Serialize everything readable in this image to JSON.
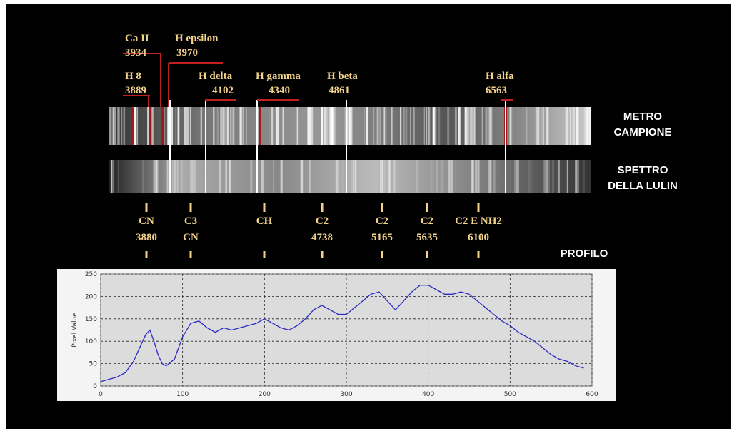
{
  "spectrum_labels": [
    {
      "lines": [
        "Ca II",
        "3934"
      ]
    },
    {
      "lines": [
        "H epsilon",
        "3970"
      ]
    },
    {
      "lines": [
        "H 8",
        "3889"
      ]
    },
    {
      "lines": [
        "H delta",
        "4102"
      ]
    },
    {
      "lines": [
        "H gamma",
        "4340"
      ]
    },
    {
      "lines": [
        "H beta",
        "4861"
      ]
    },
    {
      "lines": [
        "H alfa",
        "6563"
      ]
    }
  ],
  "strip_labels": [
    {
      "lines": [
        "METRO",
        "CAMPIONE"
      ]
    },
    {
      "lines": [
        "SPETTRO",
        "DELLA LULIN"
      ]
    }
  ],
  "band_labels": [
    {
      "lines": [
        "CN",
        "3880"
      ]
    },
    {
      "lines": [
        "C3",
        "CN"
      ]
    },
    {
      "lines": [
        "CH"
      ]
    },
    {
      "lines": [
        "C2",
        "4738"
      ]
    },
    {
      "lines": [
        "C2",
        "5165"
      ]
    },
    {
      "lines": [
        "C2",
        "5635"
      ]
    },
    {
      "lines": [
        "C2 E NH2",
        "6100"
      ]
    }
  ],
  "profile_label": "PROFILO",
  "chart_data": {
    "type": "line",
    "y_label": "Pixel Value",
    "x": [
      0,
      10,
      20,
      30,
      40,
      50,
      55,
      60,
      65,
      70,
      75,
      80,
      90,
      100,
      110,
      120,
      130,
      140,
      150,
      160,
      170,
      180,
      190,
      200,
      210,
      220,
      230,
      240,
      250,
      260,
      270,
      280,
      290,
      300,
      310,
      320,
      330,
      340,
      350,
      360,
      370,
      380,
      390,
      400,
      410,
      420,
      430,
      440,
      450,
      460,
      470,
      480,
      490,
      500,
      510,
      520,
      530,
      540,
      550,
      560,
      570,
      580,
      590
    ],
    "series": [
      {
        "name": "Pixel Value",
        "color": "#2b2bc4",
        "values": [
          10,
          15,
          20,
          30,
          55,
          95,
          115,
          125,
          100,
          70,
          50,
          45,
          60,
          110,
          140,
          145,
          130,
          120,
          130,
          125,
          130,
          135,
          140,
          150,
          140,
          130,
          125,
          135,
          150,
          170,
          180,
          170,
          160,
          160,
          175,
          190,
          205,
          210,
          190,
          170,
          190,
          210,
          225,
          225,
          215,
          205,
          205,
          210,
          205,
          190,
          175,
          160,
          145,
          135,
          120,
          110,
          100,
          85,
          70,
          60,
          55,
          45,
          40
        ]
      }
    ],
    "xlim": [
      0,
      600
    ],
    "ylim": [
      0,
      250
    ],
    "xticks": [
      0,
      100,
      200,
      300,
      400,
      500,
      600
    ],
    "yticks": [
      0,
      50,
      100,
      150,
      200,
      250
    ],
    "grid": true
  }
}
